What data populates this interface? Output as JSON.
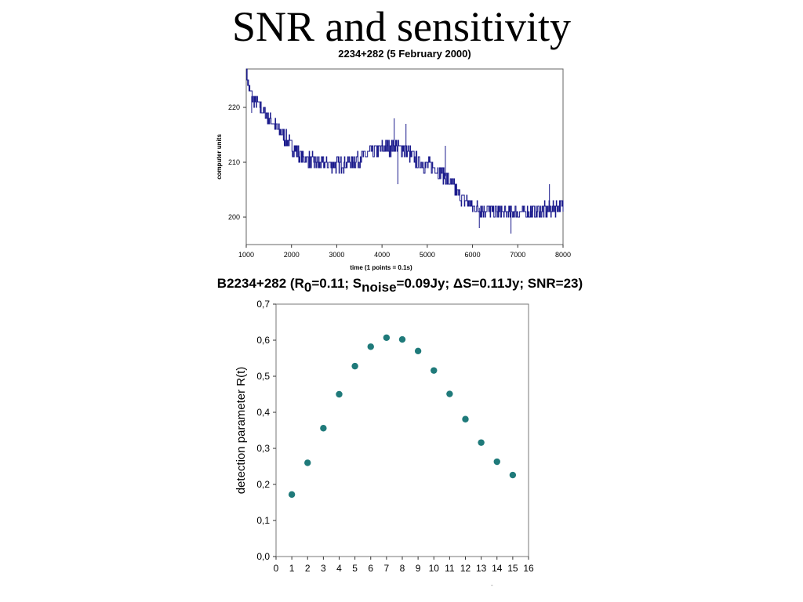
{
  "slide": {
    "title": "SNR and sensitivity",
    "corner_mark": "-"
  },
  "chart_data": [
    {
      "type": "line",
      "title": "2234+282 (5 February 2000)",
      "xlabel": "time (1 points = 0.1s)",
      "ylabel": "computer units",
      "xlim": [
        1000,
        8000
      ],
      "ylim": [
        195,
        227
      ],
      "xticks": [
        "1000",
        "2000",
        "3000",
        "4000",
        "5000",
        "6000",
        "7000",
        "8000"
      ],
      "yticks": [
        "200",
        "210",
        "220"
      ],
      "grid": false,
      "line_color": "#1a1a8c",
      "trend_points": [
        [
          1000,
          226
        ],
        [
          1080,
          222.5
        ],
        [
          1300,
          220
        ],
        [
          1600,
          217
        ],
        [
          1900,
          214
        ],
        [
          2150,
          211.5
        ],
        [
          2500,
          210
        ],
        [
          2900,
          209.5
        ],
        [
          3300,
          210
        ],
        [
          3700,
          211.5
        ],
        [
          4000,
          212.5
        ],
        [
          4300,
          213
        ],
        [
          4550,
          212
        ],
        [
          4800,
          210
        ],
        [
          5100,
          209.2
        ],
        [
          5400,
          207.5
        ],
        [
          5700,
          204
        ],
        [
          6000,
          202
        ],
        [
          6500,
          201
        ],
        [
          7000,
          200.8
        ],
        [
          7500,
          201
        ],
        [
          8000,
          202
        ]
      ],
      "noise_amplitude": 1.4,
      "spikes": [
        [
          4270,
          218
        ],
        [
          4530,
          217
        ],
        [
          4350,
          206
        ],
        [
          5400,
          213
        ],
        [
          6150,
          198
        ],
        [
          6850,
          197
        ],
        [
          7700,
          206
        ],
        [
          1120,
          219
        ]
      ]
    },
    {
      "type": "scatter",
      "title_parts": {
        "before_r": "B2234+282 (R",
        "r_sub": "0",
        "r_value": "=0.11; S",
        "s_sub": "noise",
        "s_value": "=0.09Jy; ΔS=0.11Jy; SNR=23)"
      },
      "xlabel": "",
      "ylabel": "detection parameter R(t)",
      "xlim": [
        0,
        16
      ],
      "ylim": [
        0,
        0.7
      ],
      "xticks": [
        "0",
        "1",
        "2",
        "3",
        "4",
        "5",
        "6",
        "7",
        "8",
        "9",
        "10",
        "11",
        "12",
        "13",
        "14",
        "15",
        "16"
      ],
      "yticks": [
        "0,0",
        "0,1",
        "0,2",
        "0,3",
        "0,4",
        "0,5",
        "0,6",
        "0,7"
      ],
      "grid": false,
      "point_color": "#1f7a7a",
      "x": [
        1,
        2,
        3,
        4,
        5,
        6,
        7,
        8,
        9,
        10,
        11,
        12,
        13,
        14,
        15
      ],
      "y": [
        0.172,
        0.26,
        0.356,
        0.45,
        0.528,
        0.582,
        0.607,
        0.602,
        0.57,
        0.516,
        0.451,
        0.381,
        0.316,
        0.263,
        0.226
      ]
    }
  ]
}
